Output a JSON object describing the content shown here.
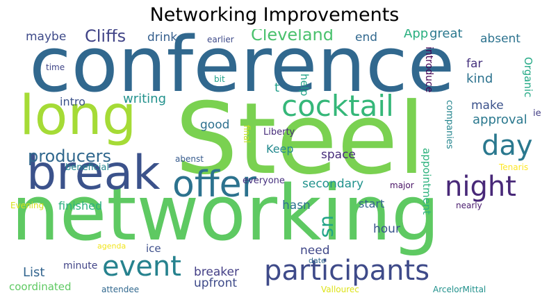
{
  "title": "Networking Improvements",
  "words": [
    {
      "text": "Steel",
      "color": "#7ad151"
    },
    {
      "text": "conference",
      "color": "#31688e"
    },
    {
      "text": "networking",
      "color": "#5ec962"
    },
    {
      "text": "long",
      "color": "#a5db36"
    },
    {
      "text": "break",
      "color": "#3b528b"
    },
    {
      "text": "offer",
      "color": "#2c728e"
    },
    {
      "text": "cocktail",
      "color": "#35b779"
    },
    {
      "text": "participants",
      "color": "#3e4a89"
    },
    {
      "text": "event",
      "color": "#26828e"
    },
    {
      "text": "night",
      "color": "#482878"
    },
    {
      "text": "day",
      "color": "#2a788e"
    },
    {
      "text": "producers",
      "color": "#31688e"
    },
    {
      "text": "Cliffs",
      "color": "#414487"
    },
    {
      "text": "Cleveland",
      "color": "#4ac16d"
    },
    {
      "text": "us",
      "color": "#20a486"
    },
    {
      "text": "maybe",
      "color": "#3e4a89"
    },
    {
      "text": "drink",
      "color": "#355f8d"
    },
    {
      "text": "end",
      "color": "#31688e"
    },
    {
      "text": "App",
      "color": "#29af7f"
    },
    {
      "text": "great",
      "color": "#2a788e"
    },
    {
      "text": "absent",
      "color": "#2c728e"
    },
    {
      "text": "earlier",
      "color": "#3e4a89"
    },
    {
      "text": "introduce",
      "color": "#440154"
    },
    {
      "text": "far",
      "color": "#46327e"
    },
    {
      "text": "Organic",
      "color": "#22a884"
    },
    {
      "text": "kind",
      "color": "#2c728e"
    },
    {
      "text": "time",
      "color": "#404688"
    },
    {
      "text": "bit",
      "color": "#1fa088"
    },
    {
      "text": "t",
      "color": "#1f9e89"
    },
    {
      "text": "help",
      "color": "#1fa187"
    },
    {
      "text": "writing",
      "color": "#21918c"
    },
    {
      "text": "intro",
      "color": "#3b528b"
    },
    {
      "text": "make",
      "color": "#3b528b"
    },
    {
      "text": "ie",
      "color": "#433e85"
    },
    {
      "text": "good",
      "color": "#2d708e"
    },
    {
      "text": "Liberty",
      "color": "#472c7a"
    },
    {
      "text": "approval",
      "color": "#2a788e"
    },
    {
      "text": "companies",
      "color": "#25858e"
    },
    {
      "text": "final",
      "color": "#c8e020"
    },
    {
      "text": "Keep",
      "color": "#23898e"
    },
    {
      "text": "space",
      "color": "#472d7b"
    },
    {
      "text": "abenst",
      "color": "#375b8d"
    },
    {
      "text": "beneficial",
      "color": "#25858e"
    },
    {
      "text": "appointment",
      "color": "#2db27d"
    },
    {
      "text": "Tenaris",
      "color": "#fde725"
    },
    {
      "text": "everyone",
      "color": "#46307e"
    },
    {
      "text": "secondary",
      "color": "#20928c"
    },
    {
      "text": "major",
      "color": "#471164"
    },
    {
      "text": "Evening",
      "color": "#d8e219"
    },
    {
      "text": "finished",
      "color": "#2ab07f"
    },
    {
      "text": "hasn",
      "color": "#2c728e"
    },
    {
      "text": "start",
      "color": "#33638d"
    },
    {
      "text": "nearly",
      "color": "#481b6d"
    },
    {
      "text": "hour",
      "color": "#3a548c"
    },
    {
      "text": "agenda",
      "color": "#f1e51d"
    },
    {
      "text": "ice",
      "color": "#3d4e8a"
    },
    {
      "text": "need",
      "color": "#3f4788"
    },
    {
      "text": "date",
      "color": "#31688e"
    },
    {
      "text": "List",
      "color": "#32648e"
    },
    {
      "text": "minute",
      "color": "#414487"
    },
    {
      "text": "breaker",
      "color": "#433e85"
    },
    {
      "text": "upfront",
      "color": "#3e4a89"
    },
    {
      "text": "coordinated",
      "color": "#5ec962"
    },
    {
      "text": "attendee",
      "color": "#31688e"
    },
    {
      "text": "Vallourec",
      "color": "#dde318"
    },
    {
      "text": "ArcelorMittal",
      "color": "#21918c"
    }
  ]
}
